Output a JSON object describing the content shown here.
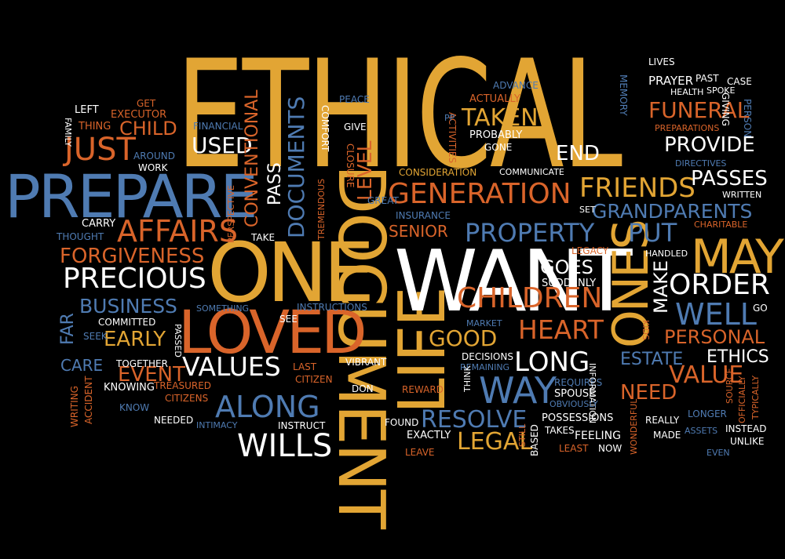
{
  "words": {
    "ethical": "ETHICAL",
    "document": "DOCUMENT",
    "life": "LIFE",
    "want": "WANT",
    "one": "ONE",
    "loved": "LOVED",
    "prepare": "PREPARE",
    "may": "MAY",
    "ones": "ONES",
    "generation": "GENERATION",
    "property": "PROPERTY",
    "friends": "FRIENDS",
    "affairs": "AFFAIRS",
    "precious": "PRECIOUS",
    "values": "VALUES",
    "wills": "WILLS",
    "way": "WAY",
    "children": "CHILDREN",
    "heart": "HEART",
    "long": "LONG",
    "along": "ALONG",
    "order": "ORDER",
    "well": "WELL",
    "personal": "PERSONAL",
    "ethics": "ETHICS",
    "estate": "ESTATE",
    "value": "VALUE",
    "need": "NEED",
    "resolve": "RESOLVE",
    "legal": "LEGAL",
    "good": "GOOD",
    "early": "EARLY",
    "forgiveness": "FORGIVENESS",
    "business": "BUSINESS",
    "just": "JUST",
    "used": "USED",
    "child": "CHILD",
    "conventional": "CONVENTIONAL",
    "documents": "DOCUMENTS",
    "pass": "PASS",
    "level": "LEVEL",
    "taken": "TAKEN",
    "funeral": "FUNERAL",
    "provide": "PROVIDE",
    "end": "END",
    "passes": "PASSES",
    "grandparents": "GRANDPARENTS",
    "put": "PUT",
    "make": "MAKE",
    "goes": "GOES",
    "senior": "SENIOR",
    "event": "EVENT",
    "care": "CARE",
    "far": "FAR",
    "lives": "LIVES",
    "prayer": "PRAYER",
    "past": "PAST",
    "case": "CASE",
    "health": "HEALTH",
    "spoke": "SPOKE",
    "giving": "GIVING",
    "person": "PERSON",
    "memory": "MEMORY",
    "advance": "ADVANCE",
    "actually": "ACTUALLY",
    "peace": "PEACE",
    "preparations": "PREPARATIONS",
    "probably": "PROBABLY",
    "gone": "GONE",
    "activities": "ACTIVITIES",
    "pp": "PP",
    "give": "GIVE",
    "comfort": "COMFORT",
    "closure": "CLOSURE",
    "financial": "FINANCIAL",
    "get": "GET",
    "left": "LEFT",
    "executor": "EXECUTOR",
    "thing": "THING",
    "family": "FAMILY",
    "around": "AROUND",
    "work": "WORK",
    "directives": "DIRECTIVES",
    "written": "WRITTEN",
    "communicate": "COMMUNICATE",
    "consideration": "CONSIDERATION",
    "great": "GREAT",
    "insurance": "INSURANCE",
    "set": "SET",
    "charitable": "CHARITABLE",
    "perspective": "PERSPECTIVE",
    "tremendous": "TREMENDOUS",
    "take": "TAKE",
    "carry": "CARRY",
    "thought": "THOUGHT",
    "legacy": "LEGACY",
    "handled": "HANDLED",
    "suddenly": "SUDDENLY",
    "something": "SOMETHING",
    "see": "SEE",
    "instructions": "INSTRUCTIONS",
    "committed": "COMMITTED",
    "passed": "PASSED",
    "seek": "SEEK",
    "market": "MARKET",
    "kids": "KIDS",
    "go": "GO",
    "together": "TOGETHER",
    "last": "LAST",
    "vibrant": "VIBRANT",
    "remaining": "REMAINING",
    "decisions": "DECISIONS",
    "think": "THINK",
    "requires": "REQUIRES",
    "information": "INFORMATION",
    "source": "SOURCE",
    "officially": "OFFICIALLY",
    "typically": "TYPICALLY",
    "knowing": "KNOWING",
    "treasured": "TREASURED",
    "citizen": "CITIZEN",
    "citizens": "CITIZENS",
    "don": "DON",
    "reward": "REWARD",
    "spouse": "SPOUSE",
    "obviously": "OBVIOUSLY",
    "know": "KNOW",
    "writing": "WRITING",
    "accident": "ACCIDENT",
    "needed": "NEEDED",
    "intimacy": "INTIMACY",
    "instruct": "INSTRUCT",
    "found": "FOUND",
    "exactly": "EXACTLY",
    "leave": "LEAVE",
    "still": "STILL",
    "based": "BASED",
    "possessions": "POSSESSIONS",
    "takes": "TAKES",
    "feeling": "FEELING",
    "least": "LEAST",
    "now": "NOW",
    "wonderful": "WONDERFUL",
    "really": "REALLY",
    "longer": "LONGER",
    "assets": "ASSETS",
    "instead": "INSTEAD",
    "made": "MADE",
    "unlike": "UNLIKE",
    "even": "EVEN"
  },
  "colors": {
    "background": "#000000",
    "gold": "#e2a534",
    "orange": "#d9642a",
    "white": "#ffffff",
    "blue": "#4f7bb2",
    "light_blue": "#9cc0e6"
  }
}
